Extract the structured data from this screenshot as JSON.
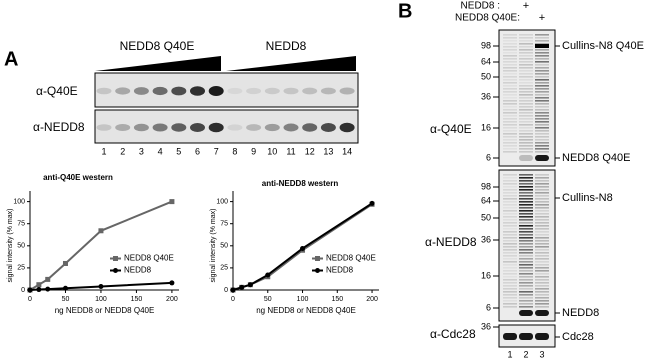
{
  "panel_a": {
    "label": "A",
    "groups": [
      "NEDD8 Q40E",
      "NEDD8"
    ],
    "rows": [
      "α-Q40E",
      "α-NEDD8"
    ],
    "lanes": [
      1,
      2,
      3,
      4,
      5,
      6,
      7,
      8,
      9,
      10,
      11,
      12,
      13,
      14
    ]
  },
  "chart_data": [
    {
      "type": "line",
      "title": "anti-Q40E western",
      "x_label": "ng NEDD8 or NEDD8 Q40E",
      "y_label": "signal intensity (% max)",
      "x": [
        0,
        12.5,
        25,
        50,
        100,
        200
      ],
      "xlim": [
        0,
        210
      ],
      "ylim": [
        0,
        112
      ],
      "xticks": [
        0,
        50,
        100,
        150,
        200
      ],
      "yticks": [
        0,
        25,
        50,
        75,
        100
      ],
      "legend": "right",
      "series": [
        {
          "name": "NEDD8 Q40E",
          "color": "#666666",
          "marker": "square",
          "values": [
            0,
            6,
            12,
            30,
            67,
            100
          ]
        },
        {
          "name": "NEDD8",
          "color": "#000000",
          "marker": "circle",
          "values": [
            0,
            0.5,
            1,
            2,
            4,
            8
          ]
        }
      ]
    },
    {
      "type": "line",
      "title": "anti-NEDD8 western",
      "x_label": "ng NEDD8 or NEDD8 Q40E",
      "y_label": "signal intensity (% max)",
      "x": [
        0,
        12.5,
        25,
        50,
        100,
        200
      ],
      "xlim": [
        0,
        210
      ],
      "ylim": [
        0,
        112
      ],
      "xticks": [
        0,
        50,
        100,
        150,
        200
      ],
      "yticks": [
        0,
        25,
        50,
        75,
        100
      ],
      "legend": "right",
      "series": [
        {
          "name": "NEDD8 Q40E",
          "color": "#666666",
          "marker": "square",
          "values": [
            0,
            3,
            6,
            15,
            45,
            97
          ]
        },
        {
          "name": "NEDD8",
          "color": "#000000",
          "marker": "circle",
          "values": [
            0,
            3,
            6,
            17,
            47,
            98
          ]
        }
      ]
    }
  ],
  "panel_b": {
    "label": "B",
    "conditions": [
      {
        "name": "NEDD8 :",
        "mark": "+"
      },
      {
        "name": "NEDD8 Q40E:",
        "mark": "+"
      }
    ],
    "blots": [
      {
        "antibody": "α-Q40E",
        "markers": [
          98,
          64,
          50,
          36,
          16,
          6
        ],
        "bands": [
          "Cullins-N8 Q40E",
          "NEDD8 Q40E"
        ]
      },
      {
        "antibody": "α-NEDD8",
        "markers": [
          98,
          64,
          50,
          36,
          16,
          6
        ],
        "bands": [
          "Cullins-N8",
          "NEDD8"
        ]
      },
      {
        "antibody": "α-Cdc28",
        "markers": [
          36
        ],
        "bands": [
          "Cdc28"
        ]
      }
    ],
    "lanes": [
      1,
      2,
      3
    ]
  }
}
